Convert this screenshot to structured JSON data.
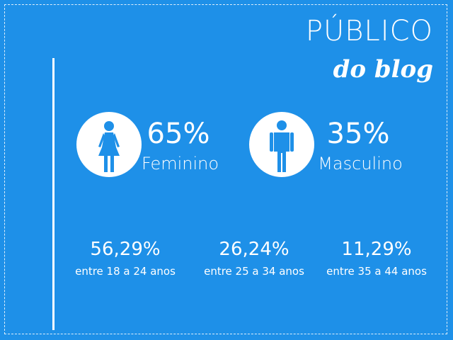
{
  "header": {
    "title": "PÚBLICO",
    "subtitle": "do blog"
  },
  "gender": [
    {
      "percent": "65%",
      "label": "Feminino",
      "icon": "female-icon"
    },
    {
      "percent": "35%",
      "label": "Masculino",
      "icon": "male-icon"
    }
  ],
  "ages": [
    {
      "percent": "56,29%",
      "range": "entre 18 a 24 anos"
    },
    {
      "percent": "26,24%",
      "range": "entre 25 a 34 anos"
    },
    {
      "percent": "11,29%",
      "range": "entre 35 a 44 anos"
    }
  ],
  "colors": {
    "background": "#1e90e8",
    "foreground": "#ffffff"
  }
}
